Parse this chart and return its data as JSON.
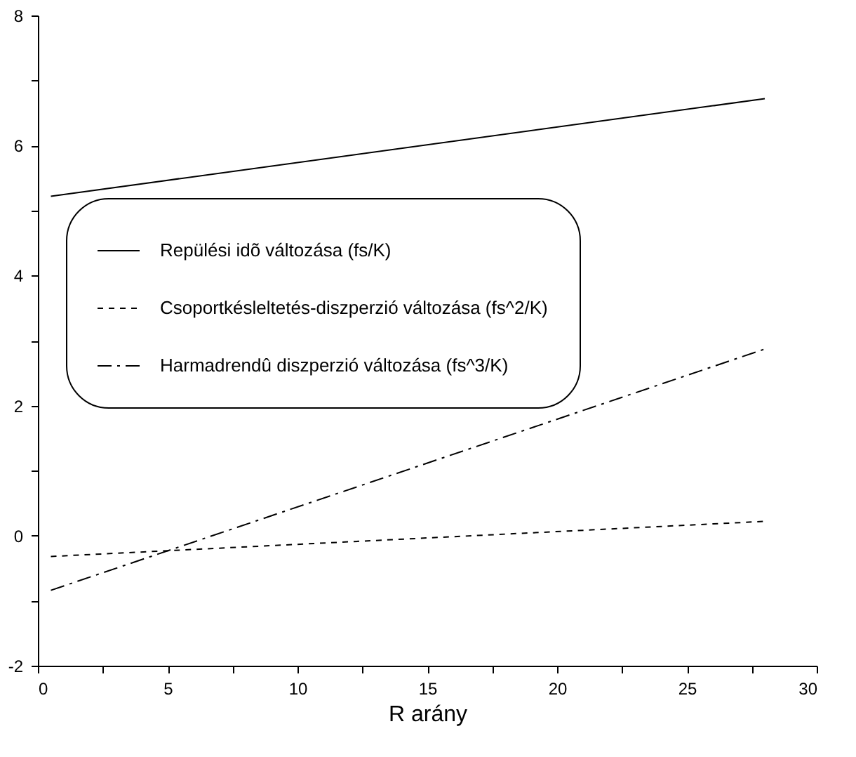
{
  "chart_data": {
    "type": "line",
    "xlabel": "R arány",
    "x": [
      0.5,
      28
    ],
    "series": [
      {
        "name": "Repülési idõ változása (fs/K)",
        "color": "#000000",
        "line_style": "solid",
        "values": [
          5.22,
          6.72
        ]
      },
      {
        "name": "Csoportkésleltetés-diszperzió változása (fs^2/K)",
        "color": "#000000",
        "line_style": "dashed",
        "values": [
          -0.32,
          0.22
        ]
      },
      {
        "name": "Harmadrendû diszperzió változása (fs^3/K)",
        "color": "#000000",
        "line_style": "dashdot",
        "values": [
          -0.84,
          2.87
        ]
      }
    ],
    "xlim": [
      0,
      30
    ],
    "ylim": [
      -2,
      8
    ],
    "xticks": [
      0,
      {
        "value": 2.5,
        "label": null
      },
      5,
      {
        "value": 7.5,
        "label": null
      },
      10,
      {
        "value": 12.5,
        "label": null
      },
      15,
      {
        "value": 17.5,
        "label": null
      },
      20,
      {
        "value": 22.5,
        "label": null
      },
      25,
      {
        "value": 27.5,
        "label": null
      },
      30
    ],
    "yticks": [
      -2,
      {
        "value": -1,
        "label": null
      },
      0,
      {
        "value": 1,
        "label": null
      },
      2,
      {
        "value": 3,
        "label": null
      },
      4,
      {
        "value": 5,
        "label": null
      },
      6,
      {
        "value": 7,
        "label": null
      },
      8
    ],
    "grid": false,
    "legend": "left",
    "marker": "none"
  }
}
